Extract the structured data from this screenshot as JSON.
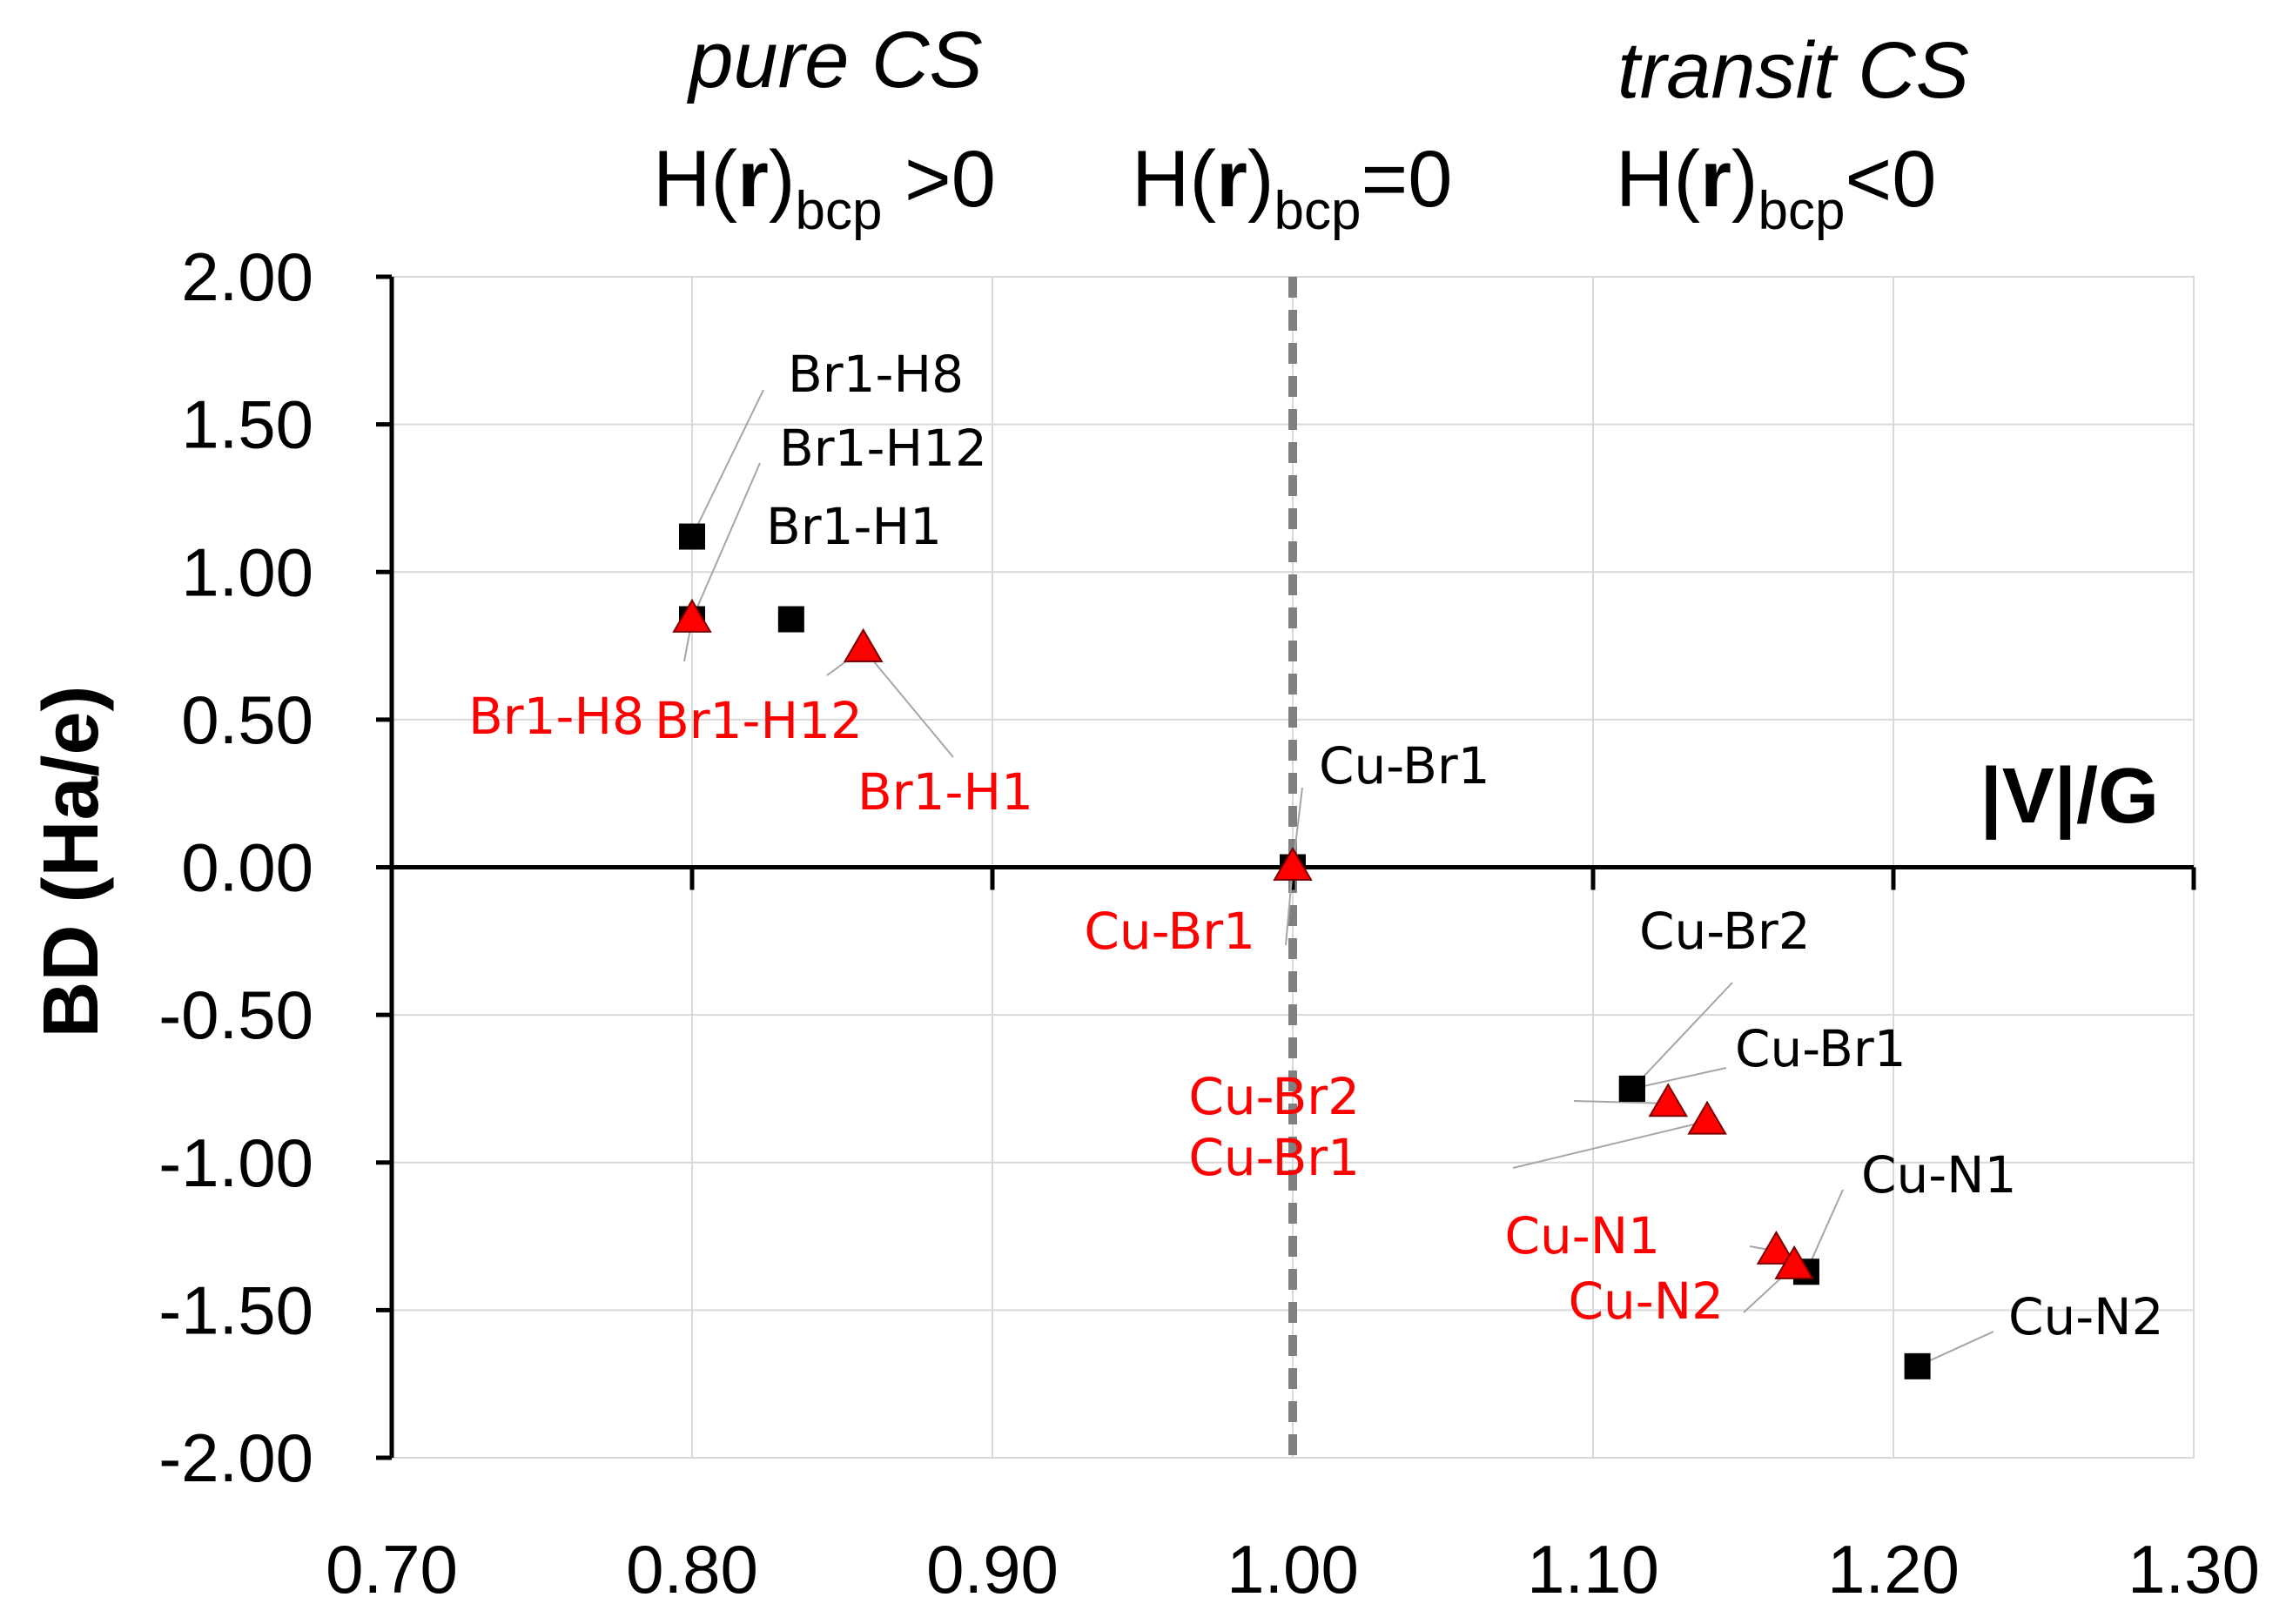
{
  "chart_data": {
    "type": "scatter",
    "title": "",
    "xlabel": "|V|/G",
    "ylabel": "BD (Ha/e)",
    "xlim": [
      0.7,
      1.3
    ],
    "ylim": [
      -2.0,
      2.0
    ],
    "grid": true,
    "x_ticks": [
      "0.70",
      "0.80",
      "0.90",
      "1.00",
      "1.10",
      "1.20",
      "1.30"
    ],
    "y_ticks": [
      "2.00",
      "1.50",
      "1.00",
      "0.50",
      "0.00",
      "-0.50",
      "-1.00",
      "-1.50",
      "-2.00"
    ],
    "reference_line": {
      "x": 1.0,
      "style": "dashed"
    },
    "region_headers": {
      "pure": {
        "title": "pure CS",
        "formula_main": "H(",
        "formula_bold": "r",
        "formula_close": ")",
        "formula_sub": "bcp",
        "formula_rel": " >0"
      },
      "zero": {
        "formula_main": "H(",
        "formula_bold": "r",
        "formula_close": ")",
        "formula_sub": "bcp",
        "formula_rel": "=0"
      },
      "transit": {
        "title": "transit CS",
        "formula_main": "H(",
        "formula_bold": "r",
        "formula_close": ")",
        "formula_sub": "bcp",
        "formula_rel": "<0"
      }
    },
    "series": [
      {
        "name": "black squares",
        "marker": "square",
        "color": "#000000",
        "points": [
          {
            "label": "Br1-H8",
            "x": 0.8,
            "y": 1.12
          },
          {
            "label": "Br1-H12",
            "x": 0.8,
            "y": 0.84
          },
          {
            "label": "Br1-H1",
            "x": 0.833,
            "y": 0.84
          },
          {
            "label": "Cu-Br1",
            "x": 1.0,
            "y": 0.0
          },
          {
            "label": "Cu-Br2",
            "x": 1.113,
            "y": -0.75
          },
          {
            "label": "Cu-Br1",
            "x": 1.113,
            "y": -0.75
          },
          {
            "label": "Cu-N1",
            "x": 1.171,
            "y": -1.37
          },
          {
            "label": "Cu-N2",
            "x": 1.208,
            "y": -1.69
          }
        ]
      },
      {
        "name": "red triangles",
        "marker": "triangle",
        "color": "#ff0000",
        "points": [
          {
            "label": "Br1-H8",
            "x": 0.8,
            "y": 0.84
          },
          {
            "label": "Br1-H12",
            "x": 0.857,
            "y": 0.74
          },
          {
            "label": "Br1-H1",
            "x": 0.857,
            "y": 0.74
          },
          {
            "label": "Cu-Br1",
            "x": 1.0,
            "y": 0.0
          },
          {
            "label": "Cu-Br2",
            "x": 1.125,
            "y": -0.8
          },
          {
            "label": "Cu-Br1",
            "x": 1.138,
            "y": -0.86
          },
          {
            "label": "Cu-N1",
            "x": 1.161,
            "y": -1.3
          },
          {
            "label": "Cu-N2",
            "x": 1.167,
            "y": -1.35
          }
        ]
      }
    ]
  }
}
